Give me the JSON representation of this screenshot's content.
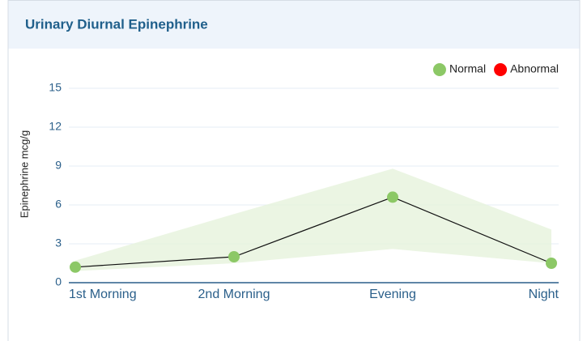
{
  "chart_data": {
    "type": "line",
    "title": "Urinary Diurnal Epinephrine",
    "y_label": "Epinephrine mcg/g",
    "categories": [
      "1st Morning",
      "2nd Morning",
      "Evening",
      "Night"
    ],
    "series": [
      {
        "name": "Normal",
        "color": "#8cc866",
        "values": [
          1.2,
          2.0,
          6.6,
          1.5
        ]
      }
    ],
    "legend": [
      {
        "name": "Normal",
        "color": "#8cc866"
      },
      {
        "name": "Abnormal",
        "color": "#ff0000"
      }
    ],
    "normal_range": {
      "color": "#e6f2dc",
      "upper": [
        1.7,
        5.3,
        8.8,
        4.1
      ],
      "lower": [
        0.9,
        1.5,
        2.6,
        1.5
      ]
    },
    "ylim": [
      0,
      15
    ],
    "yticks": [
      0,
      3,
      6,
      9,
      12,
      15
    ],
    "grid": true
  }
}
